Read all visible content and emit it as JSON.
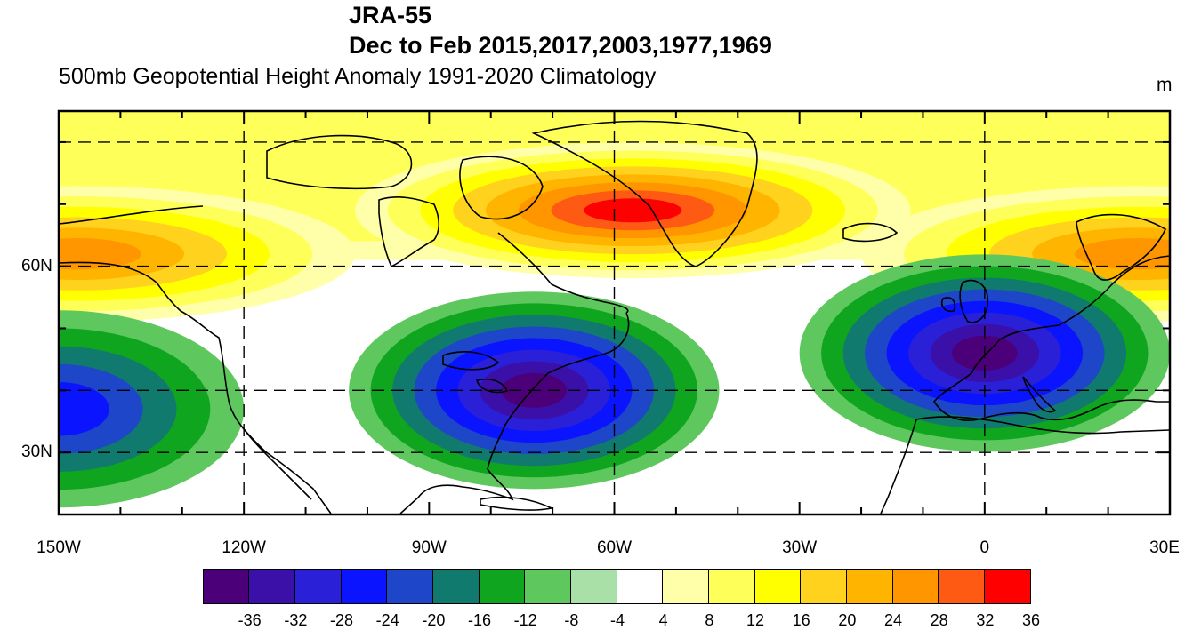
{
  "header": {
    "title": "JRA-55",
    "period": "Dec to Feb 2015,2017,2003,1977,1969",
    "subtitle": "500mb Geopotential Height Anomaly 1991-2020 Climatology",
    "unit": "m"
  },
  "map": {
    "projection": "cylindrical equidistant",
    "lon_range": [
      -150,
      30
    ],
    "lat_range": [
      20,
      85
    ],
    "lon_ticks": [
      "150W",
      "120W",
      "90W",
      "60W",
      "30W",
      "0",
      "30E"
    ],
    "lat_ticks": [
      "30N",
      "60N"
    ],
    "grid_lines": "dashed at 30-degree longitude and 30N/40N/60N/80N latitude",
    "anomaly_centers": [
      {
        "sign": "positive",
        "lon": -57,
        "lat": 69,
        "value_m": 38,
        "color_class": "red"
      },
      {
        "sign": "positive",
        "lon": -147,
        "lat": 62,
        "value_m": 26,
        "color_class": "orange"
      },
      {
        "sign": "positive",
        "lon": 25,
        "lat": 62,
        "value_m": 24,
        "color_class": "orange"
      },
      {
        "sign": "negative",
        "lon": -73,
        "lat": 40,
        "value_m": -36,
        "color_class": "purple"
      },
      {
        "sign": "negative",
        "lon": 0,
        "lat": 46,
        "value_m": -34,
        "color_class": "purple"
      },
      {
        "sign": "negative",
        "lon": -150,
        "lat": 37,
        "value_m": -24,
        "color_class": "blue"
      }
    ]
  },
  "colorbar": {
    "labels": [
      "-36",
      "-32",
      "-28",
      "-24",
      "-20",
      "-16",
      "-12",
      "-8",
      "-4",
      "4",
      "8",
      "12",
      "16",
      "20",
      "24",
      "28",
      "32",
      "36"
    ],
    "colors": [
      "#4b007a",
      "#3a10a8",
      "#2a20d8",
      "#0a14ff",
      "#1e46c8",
      "#107a6e",
      "#10a51e",
      "#5ec85e",
      "#a8e0a8",
      "#ffffff",
      "#ffffaa",
      "#ffff5a",
      "#ffff00",
      "#ffd21e",
      "#ffb400",
      "#ff9600",
      "#ff5a14",
      "#ff0000"
    ]
  }
}
